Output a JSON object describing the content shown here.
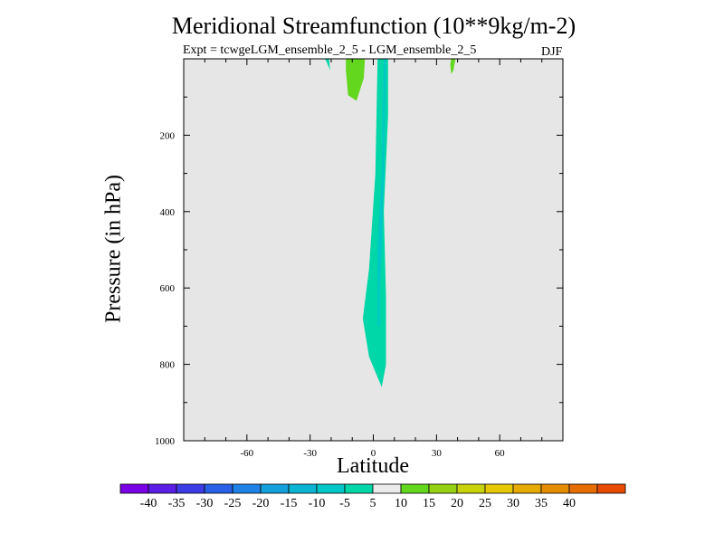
{
  "chart_data": {
    "type": "contour",
    "title": "Meridional Streamfunction (10**9kg/m-2)",
    "subtitle_left": "Expt = tcwgeLGM_ensemble_2_5 - LGM_ensemble_2_5",
    "season": "DJF",
    "xlabel": "Latitude",
    "ylabel": "Pressure (in hPa)",
    "xlim": [
      -90,
      90
    ],
    "ylim": [
      1000,
      0
    ],
    "x_ticks": [
      -60,
      -30,
      0,
      30,
      60
    ],
    "y_ticks": [
      200,
      400,
      600,
      800,
      1000
    ],
    "background_level": "0",
    "contour_regions": [
      {
        "name": "cyan-plume-main",
        "level": "-5 to -10",
        "color": "#00d7a8",
        "points": [
          [
            3,
            0
          ],
          [
            7,
            0
          ],
          [
            7,
            150
          ],
          [
            5,
            400
          ],
          [
            6,
            620
          ],
          [
            6,
            800
          ],
          [
            4,
            860
          ],
          [
            -2,
            780
          ],
          [
            -5,
            680
          ],
          [
            -2,
            550
          ],
          [
            1,
            300
          ],
          [
            2,
            0
          ]
        ]
      },
      {
        "name": "cyan-core",
        "level": "-10 to -15",
        "color": "#00c8c8",
        "points": [
          [
            5,
            0
          ],
          [
            6,
            0
          ],
          [
            5,
            300
          ],
          [
            4,
            500
          ],
          [
            3,
            600
          ],
          [
            3,
            700
          ],
          [
            2,
            700
          ],
          [
            2,
            500
          ],
          [
            4,
            300
          ]
        ]
      },
      {
        "name": "cyan-sliver",
        "level": "-5 to -10",
        "color": "#00d7a8",
        "points": [
          [
            -23,
            0
          ],
          [
            -21,
            0
          ],
          [
            -20.5,
            30
          ],
          [
            -22,
            10
          ]
        ]
      },
      {
        "name": "green-left",
        "level": "5 to 10",
        "color": "#63d61e",
        "points": [
          [
            -13,
            0
          ],
          [
            -4,
            0
          ],
          [
            -4.5,
            50
          ],
          [
            -8,
            110
          ],
          [
            -12,
            95
          ],
          [
            -13,
            30
          ]
        ]
      },
      {
        "name": "green-right",
        "level": "5 to 10",
        "color": "#63d61e",
        "points": [
          [
            37,
            0
          ],
          [
            39,
            0
          ],
          [
            38,
            30
          ],
          [
            37,
            40
          ],
          [
            36.5,
            15
          ]
        ]
      }
    ],
    "colorbar": {
      "labels": [
        "-40",
        "-35",
        "-30",
        "-25",
        "-20",
        "-15",
        "-10",
        "-5",
        "5",
        "10",
        "15",
        "20",
        "25",
        "30",
        "35",
        "40"
      ],
      "colors": [
        "#7a00e6",
        "#5a1ee6",
        "#3c3ce6",
        "#2860e6",
        "#1e82e6",
        "#14a0dc",
        "#0ab4d2",
        "#00c8c8",
        "#00d7a8",
        "#ebebeb",
        "#63d61e",
        "#96d214",
        "#c8d20a",
        "#e6c800",
        "#e6aa00",
        "#e68c00",
        "#e66e00",
        "#e64b00"
      ]
    },
    "plot_background": "#e6e6e6"
  }
}
